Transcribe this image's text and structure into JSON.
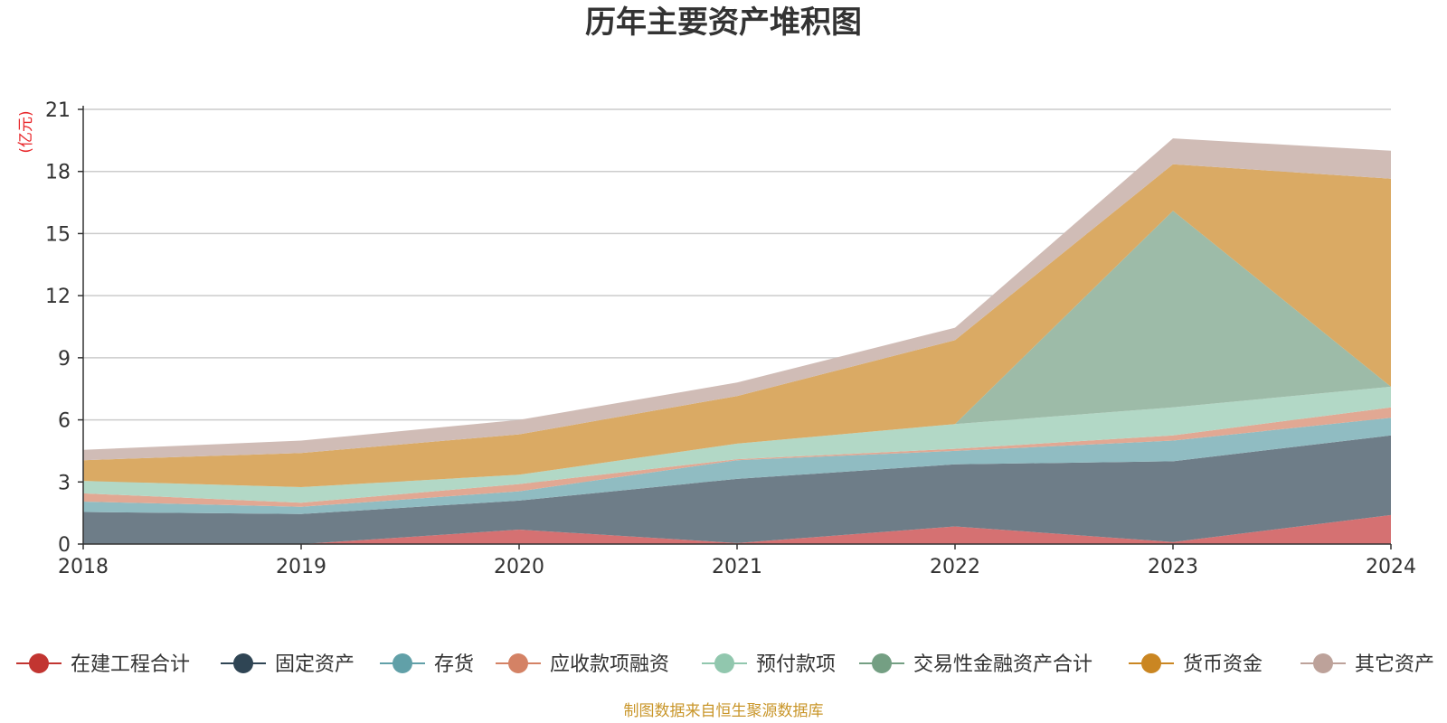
{
  "chart_data": {
    "type": "area",
    "stacked": true,
    "title": "历年主要资产堆积图",
    "unit_label": "(亿元)",
    "footer": "制图数据来自恒生聚源数据库",
    "x": [
      "2018",
      "2019",
      "2020",
      "2021",
      "2022",
      "2023",
      "2024"
    ],
    "ylim": [
      0,
      21
    ],
    "yticks": [
      "0",
      "3",
      "6",
      "9",
      "12",
      "15",
      "18",
      "21"
    ],
    "grid": true,
    "legend_position": "bottom",
    "series": [
      {
        "name": "在建工程合计",
        "color": "#c23531",
        "area_color": "#d57172",
        "values": [
          0,
          0,
          0.7,
          0.05,
          0.85,
          0.1,
          1.4
        ]
      },
      {
        "name": "固定资产",
        "color": "#2f4554",
        "area_color": "#6e7d88",
        "values": [
          1.55,
          1.45,
          1.4,
          3.1,
          3.0,
          3.9,
          3.85
        ]
      },
      {
        "name": "存货",
        "color": "#61a0a8",
        "area_color": "#90bcc2",
        "values": [
          0.5,
          0.35,
          0.45,
          0.9,
          0.65,
          1.0,
          0.85
        ]
      },
      {
        "name": "应收款项融资",
        "color": "#d48265",
        "area_color": "#e1a893",
        "values": [
          0.4,
          0.2,
          0.35,
          0.05,
          0.1,
          0.25,
          0.5
        ]
      },
      {
        "name": "预付款项",
        "color": "#91c7ae",
        "area_color": "#b2d8c6",
        "values": [
          0.6,
          0.75,
          0.45,
          0.75,
          1.2,
          1.35,
          1.0
        ]
      },
      {
        "name": "交易性金融资产合计",
        "color": "#749f83",
        "area_color": "#9dbba8",
        "values": [
          0,
          0,
          0,
          0,
          0,
          9.5,
          0
        ]
      },
      {
        "name": "货币资金",
        "color": "#ca8622",
        "area_color": "#daaa64",
        "values": [
          1.0,
          1.65,
          1.95,
          2.3,
          4.05,
          2.25,
          10.05
        ]
      },
      {
        "name": "其它资产",
        "color": "#bda29a",
        "area_color": "#d0bcb6",
        "values": [
          0.5,
          0.6,
          0.7,
          0.65,
          0.6,
          1.25,
          1.35
        ]
      }
    ]
  }
}
